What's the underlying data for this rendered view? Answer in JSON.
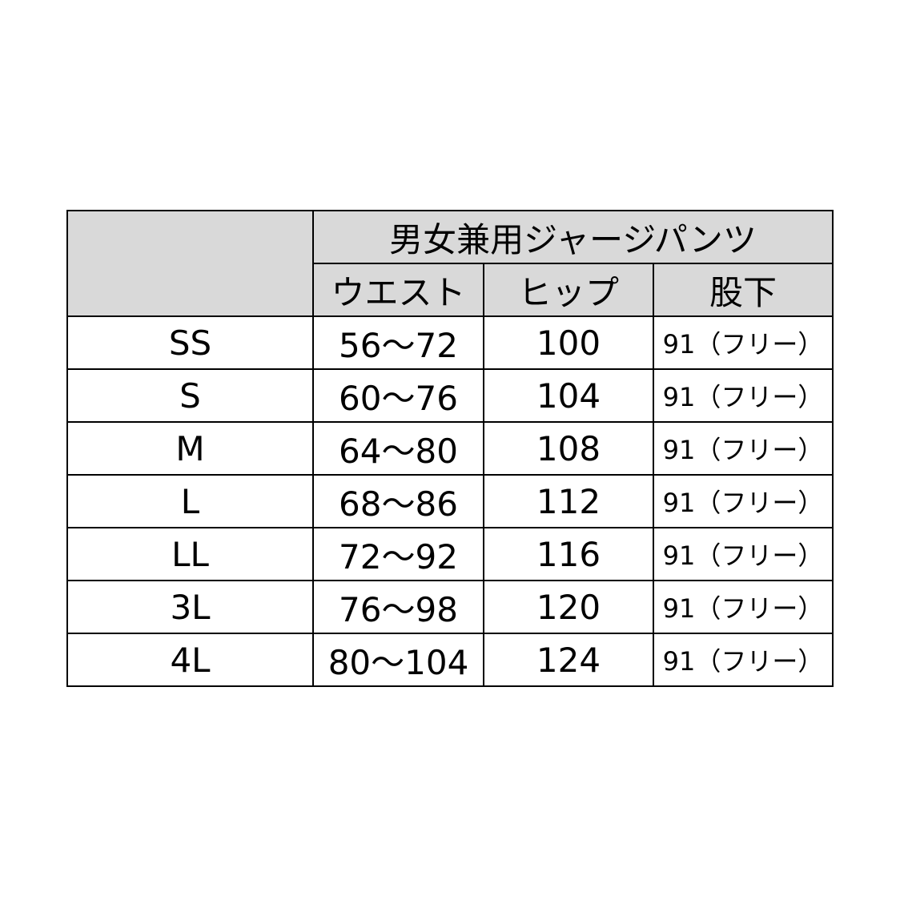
{
  "table": {
    "title": "男女兼用ジャージパンツ",
    "columns": [
      "ウエスト",
      "ヒップ",
      "股下"
    ],
    "rows": [
      [
        "SS",
        "56～72",
        "100",
        "91（フリー）"
      ],
      [
        "S",
        "60～76",
        "104",
        "91（フリー）"
      ],
      [
        "M",
        "64～80",
        "108",
        "91（フリー）"
      ],
      [
        "L",
        "68～86",
        "112",
        "91（フリー）"
      ],
      [
        "LL",
        "72～92",
        "116",
        "91（フリー）"
      ],
      [
        "3L",
        "76～98",
        "120",
        "91（フリー）"
      ],
      [
        "4L",
        "80～104",
        "124",
        "91（フリー）"
      ]
    ]
  }
}
